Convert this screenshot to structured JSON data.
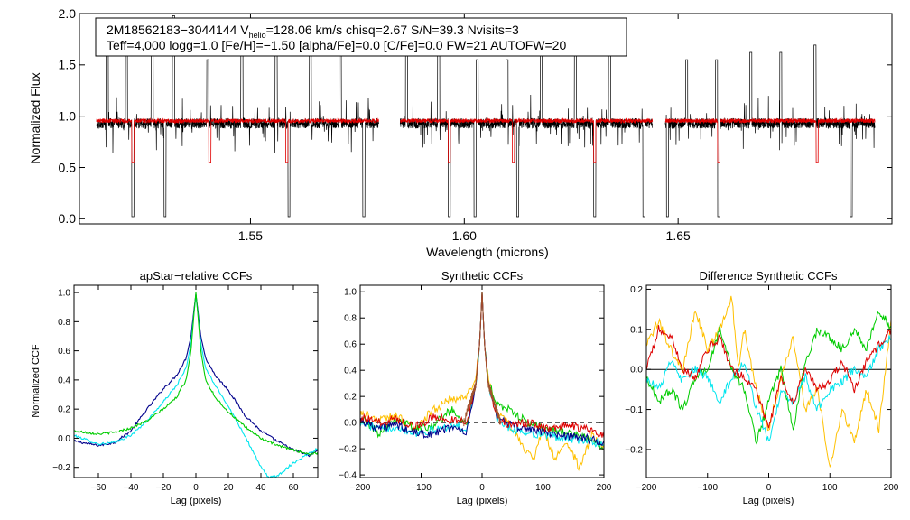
{
  "chart_data": [
    {
      "id": "spectrum",
      "type": "line",
      "title": "",
      "annotation_line1_prefix": "2M18562183−3044144  V",
      "annotation_line1_subscript": "helio",
      "annotation_line1_suffix": "=128.06 km/s  chisq=2.67  S/N=39.3  Nvisits=3",
      "annotation_line2": "Teff=4,000 logg=1.0 [Fe/H]=−1.50 [alpha/Fe]=0.0 [C/Fe]=0.0 FW=21 AUTOFW=20",
      "xlabel": "Wavelength (microns)",
      "ylabel": "Normalized Flux",
      "xlim": [
        1.51,
        1.7
      ],
      "ylim": [
        -0.05,
        2.0
      ],
      "xticks": [
        "1.55",
        "1.60",
        "1.65"
      ],
      "xtick_values": [
        1.55,
        1.6,
        1.65
      ],
      "yticks": [
        "0.0",
        "0.5",
        "1.0",
        "1.5",
        "2.0"
      ],
      "ytick_values": [
        0.0,
        0.5,
        1.0,
        1.5,
        2.0
      ],
      "chips": [
        [
          1.514,
          1.58
        ],
        [
          1.585,
          1.644
        ],
        [
          1.647,
          1.696
        ]
      ],
      "series": [
        {
          "name": "observed",
          "color": "#000000",
          "continuum": 0.93,
          "noise": 0.05,
          "emission_lines": [
            1.5165,
            1.521,
            1.527,
            1.532,
            1.54,
            1.548,
            1.556,
            1.564,
            1.571,
            1.5865,
            1.594,
            1.603,
            1.61,
            1.618,
            1.626,
            1.634,
            1.652,
            1.659,
            1.667,
            1.674,
            1.682
          ],
          "absorption_lines": [
            1.5225,
            1.53,
            1.54,
            1.559,
            1.5765,
            1.5965,
            1.6025,
            1.6125,
            1.6305,
            1.642,
            1.6475,
            1.6595,
            1.6905
          ]
        },
        {
          "name": "synthetic",
          "color": "#e00000",
          "continuum": 0.955,
          "noise": 0.02,
          "absorption_lines": [
            1.5225,
            1.5405,
            1.5585,
            1.5965,
            1.6115,
            1.6305,
            1.6595,
            1.6825
          ]
        }
      ]
    },
    {
      "id": "ccf1",
      "type": "line",
      "title": "apStar−relative CCFs",
      "xlabel": "Lag (pixels)",
      "ylabel": "Normalized CCF",
      "xlim": [
        -75,
        75
      ],
      "ylim": [
        -0.27,
        1.05
      ],
      "xticks": [
        "−60",
        "−40",
        "−20",
        "0",
        "20",
        "40",
        "60"
      ],
      "xtick_values": [
        -60,
        -40,
        -20,
        0,
        20,
        40,
        60
      ],
      "yticks": [
        "−0.2",
        "0.0",
        "0.2",
        "0.4",
        "0.6",
        "0.8",
        "1.0"
      ],
      "ytick_values": [
        -0.2,
        0.0,
        0.2,
        0.4,
        0.6,
        0.8,
        1.0
      ],
      "series": [
        {
          "name": "navy",
          "color": "#00008b",
          "x": [
            -75,
            -60,
            -50,
            -40,
            -30,
            -20,
            -12,
            -6,
            -3,
            -1,
            0,
            1,
            3,
            6,
            12,
            20,
            30,
            40,
            50,
            60,
            70,
            75
          ],
          "y": [
            -0.02,
            -0.05,
            -0.03,
            0.05,
            0.2,
            0.34,
            0.43,
            0.55,
            0.7,
            0.9,
            0.99,
            0.9,
            0.7,
            0.55,
            0.43,
            0.33,
            0.16,
            0.05,
            -0.02,
            -0.08,
            -0.12,
            -0.08
          ]
        },
        {
          "name": "cyan",
          "color": "#00e5ee",
          "x": [
            -75,
            -60,
            -50,
            -40,
            -30,
            -20,
            -12,
            -6,
            -3,
            -1,
            0,
            1,
            3,
            6,
            12,
            20,
            30,
            40,
            45,
            50,
            60,
            70,
            75
          ],
          "y": [
            0.02,
            -0.04,
            -0.03,
            0.02,
            0.12,
            0.25,
            0.36,
            0.48,
            0.65,
            0.88,
            0.98,
            0.88,
            0.65,
            0.48,
            0.36,
            0.22,
            0.02,
            -0.2,
            -0.27,
            -0.26,
            -0.17,
            -0.1,
            -0.07
          ]
        },
        {
          "name": "green",
          "color": "#00cc00",
          "x": [
            -75,
            -60,
            -50,
            -40,
            -30,
            -20,
            -12,
            -6,
            -3,
            -1,
            0,
            1,
            3,
            6,
            12,
            20,
            30,
            40,
            50,
            60,
            70,
            75
          ],
          "y": [
            0.05,
            0.03,
            0.04,
            0.07,
            0.12,
            0.2,
            0.28,
            0.4,
            0.6,
            0.88,
            1.0,
            0.88,
            0.6,
            0.4,
            0.28,
            0.18,
            0.08,
            0.0,
            -0.05,
            -0.08,
            -0.11,
            -0.1
          ]
        }
      ]
    },
    {
      "id": "ccf2",
      "type": "line",
      "title": "Synthetic CCFs",
      "xlabel": "Lag (pixels)",
      "ylabel": "",
      "xlim": [
        -200,
        200
      ],
      "ylim": [
        -0.42,
        1.05
      ],
      "xticks": [
        "−200",
        "−100",
        "0",
        "100",
        "200"
      ],
      "xtick_values": [
        -200,
        -100,
        0,
        100,
        200
      ],
      "yticks": [
        "−0.4",
        "−0.2",
        "0.0",
        "0.2",
        "0.4",
        "0.6",
        "0.8",
        "1.0"
      ],
      "ytick_values": [
        -0.4,
        -0.2,
        0.0,
        0.2,
        0.4,
        0.6,
        0.8,
        1.0
      ],
      "zero_line": true,
      "series": [
        {
          "name": "gold",
          "color": "#ffc000",
          "x": [
            -200,
            -170,
            -140,
            -110,
            -80,
            -50,
            -25,
            -10,
            -4,
            0,
            4,
            10,
            25,
            50,
            70,
            85,
            100,
            120,
            140,
            160,
            180,
            200
          ],
          "y": [
            0.08,
            0.02,
            0.05,
            -0.05,
            0.1,
            0.18,
            0.2,
            0.35,
            0.6,
            1.0,
            0.6,
            0.35,
            0.08,
            -0.05,
            -0.2,
            -0.28,
            -0.05,
            -0.28,
            -0.15,
            -0.35,
            -0.1,
            -0.2
          ]
        },
        {
          "name": "green",
          "color": "#00cc00",
          "x": [
            -200,
            -170,
            -140,
            -110,
            -80,
            -50,
            -25,
            -10,
            -4,
            0,
            4,
            10,
            25,
            50,
            80,
            110,
            140,
            170,
            200
          ],
          "y": [
            0.05,
            -0.08,
            0.04,
            -0.05,
            -0.02,
            0.1,
            0.0,
            0.3,
            0.6,
            1.0,
            0.6,
            0.3,
            0.15,
            0.08,
            -0.02,
            -0.05,
            -0.08,
            -0.12,
            -0.18
          ]
        },
        {
          "name": "cyan",
          "color": "#00e5ee",
          "x": [
            -200,
            -170,
            -140,
            -110,
            -80,
            -50,
            -25,
            -10,
            -4,
            0,
            4,
            10,
            25,
            50,
            80,
            110,
            140,
            170,
            200
          ],
          "y": [
            0.0,
            -0.05,
            -0.03,
            -0.08,
            -0.06,
            -0.02,
            -0.05,
            0.3,
            0.6,
            1.0,
            0.6,
            0.3,
            0.02,
            -0.05,
            -0.08,
            -0.1,
            -0.12,
            -0.14,
            -0.16
          ]
        },
        {
          "name": "navy",
          "color": "#00008b",
          "x": [
            -200,
            -170,
            -140,
            -110,
            -80,
            -50,
            -25,
            -10,
            -4,
            0,
            4,
            10,
            25,
            50,
            80,
            110,
            140,
            170,
            200
          ],
          "y": [
            0.02,
            -0.04,
            -0.02,
            -0.08,
            -0.09,
            -0.03,
            -0.08,
            0.3,
            0.6,
            1.0,
            0.6,
            0.3,
            0.05,
            -0.03,
            -0.05,
            -0.08,
            -0.1,
            -0.12,
            -0.16
          ]
        },
        {
          "name": "red",
          "color": "#dd0000",
          "x": [
            -200,
            -170,
            -140,
            -110,
            -80,
            -50,
            -25,
            -10,
            -4,
            0,
            4,
            10,
            25,
            50,
            80,
            110,
            140,
            170,
            200
          ],
          "y": [
            0.04,
            0.0,
            0.03,
            -0.03,
            0.04,
            0.02,
            0.01,
            0.3,
            0.6,
            1.0,
            0.6,
            0.3,
            0.03,
            -0.02,
            0.0,
            -0.05,
            -0.02,
            -0.05,
            -0.1
          ]
        },
        {
          "name": "brown",
          "color": "#a0522d",
          "x": [
            -30,
            -10,
            -4,
            0,
            4,
            10,
            30
          ],
          "y": [
            0.0,
            0.3,
            0.6,
            1.0,
            0.6,
            0.3,
            0.0
          ]
        }
      ]
    },
    {
      "id": "ccf3",
      "type": "line",
      "title": "Difference Synthetic CCFs",
      "xlabel": "Lag (pixels)",
      "ylabel": "",
      "xlim": [
        -200,
        200
      ],
      "ylim": [
        -0.27,
        0.21
      ],
      "xticks": [
        "−200",
        "−100",
        "0",
        "100",
        "200"
      ],
      "xtick_values": [
        -200,
        -100,
        0,
        100,
        200
      ],
      "yticks": [
        "−0.2",
        "−0.1",
        "0.0",
        "0.1",
        "0.2"
      ],
      "ytick_values": [
        -0.2,
        -0.1,
        0.0,
        0.1,
        0.2
      ],
      "zero_line": true,
      "series": [
        {
          "name": "gold",
          "color": "#ffc000",
          "x": [
            -200,
            -180,
            -160,
            -140,
            -120,
            -100,
            -80,
            -60,
            -50,
            -40,
            -20,
            0,
            20,
            40,
            60,
            80,
            100,
            120,
            140,
            160,
            180,
            200
          ],
          "y": [
            0.06,
            0.12,
            0.05,
            0.0,
            0.15,
            0.05,
            0.1,
            0.18,
            0.0,
            0.1,
            -0.05,
            -0.15,
            -0.02,
            0.08,
            -0.1,
            -0.05,
            -0.25,
            -0.1,
            -0.18,
            -0.05,
            -0.15,
            0.12
          ]
        },
        {
          "name": "green",
          "color": "#00cc00",
          "x": [
            -200,
            -180,
            -160,
            -140,
            -120,
            -100,
            -80,
            -60,
            -40,
            -20,
            0,
            20,
            40,
            60,
            80,
            100,
            120,
            140,
            160,
            180,
            200
          ],
          "y": [
            -0.02,
            -0.08,
            -0.05,
            -0.1,
            -0.02,
            0.0,
            0.1,
            0.0,
            -0.05,
            -0.18,
            -0.08,
            0.0,
            -0.15,
            0.02,
            0.1,
            0.08,
            0.05,
            0.1,
            0.05,
            0.15,
            0.1
          ]
        },
        {
          "name": "cyan",
          "color": "#00e5ee",
          "x": [
            -200,
            -180,
            -160,
            -140,
            -120,
            -100,
            -80,
            -60,
            -40,
            -20,
            0,
            20,
            40,
            60,
            80,
            100,
            120,
            140,
            160,
            180,
            200
          ],
          "y": [
            -0.02,
            -0.05,
            0.02,
            -0.03,
            0.0,
            -0.02,
            -0.08,
            -0.02,
            0.02,
            -0.1,
            -0.18,
            -0.06,
            -0.08,
            -0.02,
            -0.1,
            -0.05,
            -0.03,
            0.0,
            -0.02,
            0.05,
            0.08
          ]
        },
        {
          "name": "red",
          "color": "#dd0000",
          "x": [
            -200,
            -180,
            -160,
            -140,
            -120,
            -100,
            -80,
            -60,
            -40,
            -20,
            0,
            20,
            40,
            60,
            80,
            100,
            120,
            140,
            160,
            180,
            200
          ],
          "y": [
            0.0,
            0.1,
            0.08,
            0.0,
            -0.02,
            0.05,
            0.08,
            0.0,
            -0.02,
            -0.05,
            -0.15,
            -0.02,
            -0.08,
            0.0,
            -0.05,
            -0.03,
            0.02,
            -0.05,
            0.02,
            0.06,
            0.1
          ]
        }
      ]
    }
  ]
}
